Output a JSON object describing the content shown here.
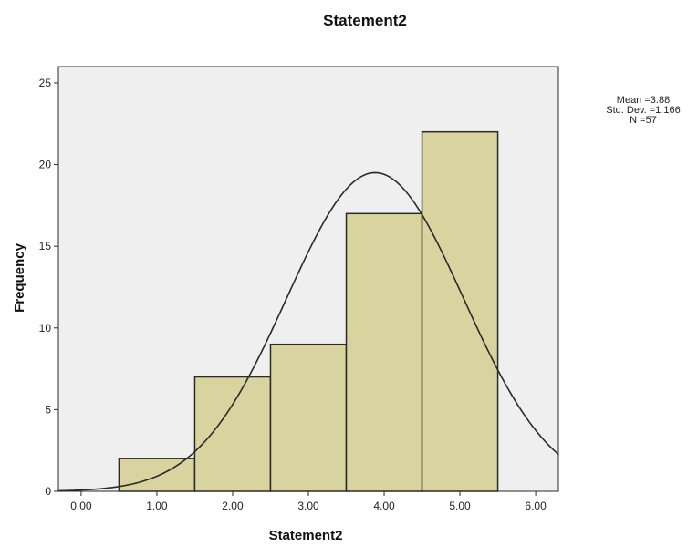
{
  "chart_data": {
    "type": "bar",
    "title": "Statement2",
    "xlabel": "Statement2",
    "ylabel": "Frequency",
    "bins": [
      {
        "x0": 0.5,
        "x1": 1.5,
        "value": 2
      },
      {
        "x0": 1.5,
        "x1": 2.5,
        "value": 7
      },
      {
        "x0": 2.5,
        "x1": 3.5,
        "value": 9
      },
      {
        "x0": 3.5,
        "x1": 4.5,
        "value": 17
      },
      {
        "x0": 4.5,
        "x1": 5.5,
        "value": 22
      }
    ],
    "xlim": [
      -0.3,
      6.3
    ],
    "ylim": [
      0,
      26
    ],
    "xticks": [
      0,
      1,
      2,
      3,
      4,
      5,
      6
    ],
    "xtick_labels": [
      "0.00",
      "1.00",
      "2.00",
      "3.00",
      "4.00",
      "5.00",
      "6.00"
    ],
    "yticks": [
      0,
      5,
      10,
      15,
      20,
      25
    ],
    "ytick_labels": [
      "0",
      "5",
      "10",
      "15",
      "20",
      "25"
    ],
    "normal_curve": {
      "mean": 3.88,
      "sd": 1.166,
      "n": 57,
      "bin_width": 1
    },
    "stats_lines": [
      "Mean =3.88",
      "Std. Dev. =1.166",
      "N =57"
    ],
    "grid": false,
    "colors": {
      "bar_fill": "#d8d39f",
      "bar_stroke": "#2a2a2a",
      "plot_bg": "#efefef",
      "curve": "#2a2a2a"
    }
  }
}
